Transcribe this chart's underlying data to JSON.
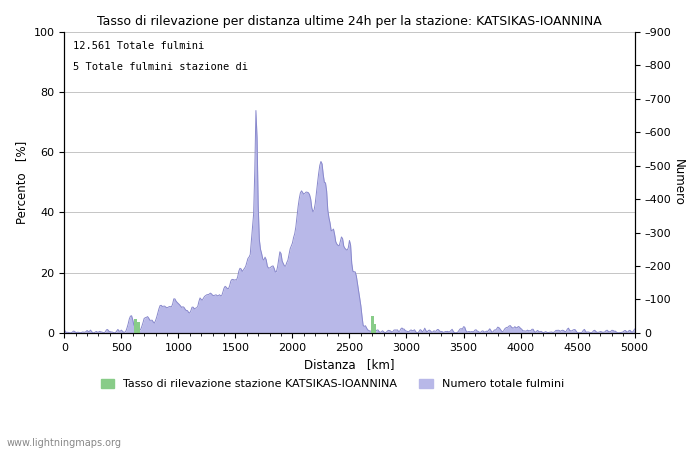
{
  "title": "Tasso di rilevazione per distanza ultime 24h per la stazione: KATSIKAS-IOANNINA",
  "xlabel": "Distanza   [km]",
  "ylabel_left": "Percento   [%]",
  "ylabel_right": "Numero",
  "annotation_line1": "12.561 Totale fulmini",
  "annotation_line2": "5 Totale fulmini stazione di",
  "legend_label1": "Tasso di rilevazione stazione KATSIKAS-IOANNINA",
  "legend_label2": "Numero totale fulmini",
  "watermark": "www.lightningmaps.org",
  "xlim": [
    0,
    5000
  ],
  "ylim_left": [
    0,
    100
  ],
  "ylim_right": [
    0,
    900
  ],
  "xticks": [
    0,
    500,
    1000,
    1500,
    2000,
    2500,
    3000,
    3500,
    4000,
    4500,
    5000
  ],
  "yticks_left": [
    0,
    20,
    40,
    60,
    80,
    100
  ],
  "yticks_right": [
    0,
    100,
    200,
    300,
    400,
    500,
    600,
    700,
    800,
    900
  ],
  "fill_color_blue": "#b8b8e8",
  "line_color_blue": "#8888cc",
  "fill_color_green": "#88cc88",
  "bg_color": "#ffffff",
  "grid_color": "#bbbbbb",
  "figsize": [
    7.0,
    4.5
  ],
  "dpi": 100
}
